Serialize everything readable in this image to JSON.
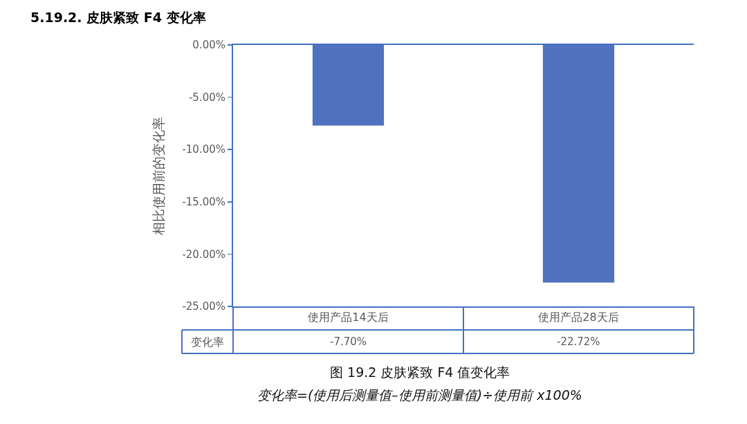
{
  "chart_data": {
    "type": "bar",
    "title": "5.19.2. 皮肤紧致 F4 变化率",
    "ylabel": "相比使用前的变化率",
    "categories": [
      "使用产品14天后",
      "使用产品28天后"
    ],
    "series": [
      {
        "name": "变化率",
        "color": "#4f71be",
        "values": [
          -7.7,
          -22.72
        ],
        "value_labels": [
          "-7.70%",
          "-22.72%"
        ]
      }
    ],
    "ylim": [
      -25,
      0
    ],
    "yticks": [
      {
        "value": 0,
        "label": "0.00%"
      },
      {
        "value": -5,
        "label": "-5.00%"
      },
      {
        "value": -10,
        "label": "-10.00%"
      },
      {
        "value": -15,
        "label": "-15.00%"
      },
      {
        "value": -20,
        "label": "-20.00%"
      },
      {
        "value": -25,
        "label": "-25.00%"
      }
    ],
    "annotations": [
      "图 19.2 皮肤紧致 F4 值变化率",
      "变化率=(使用后测量值–使用前测量值)÷使用前 x100%"
    ]
  }
}
